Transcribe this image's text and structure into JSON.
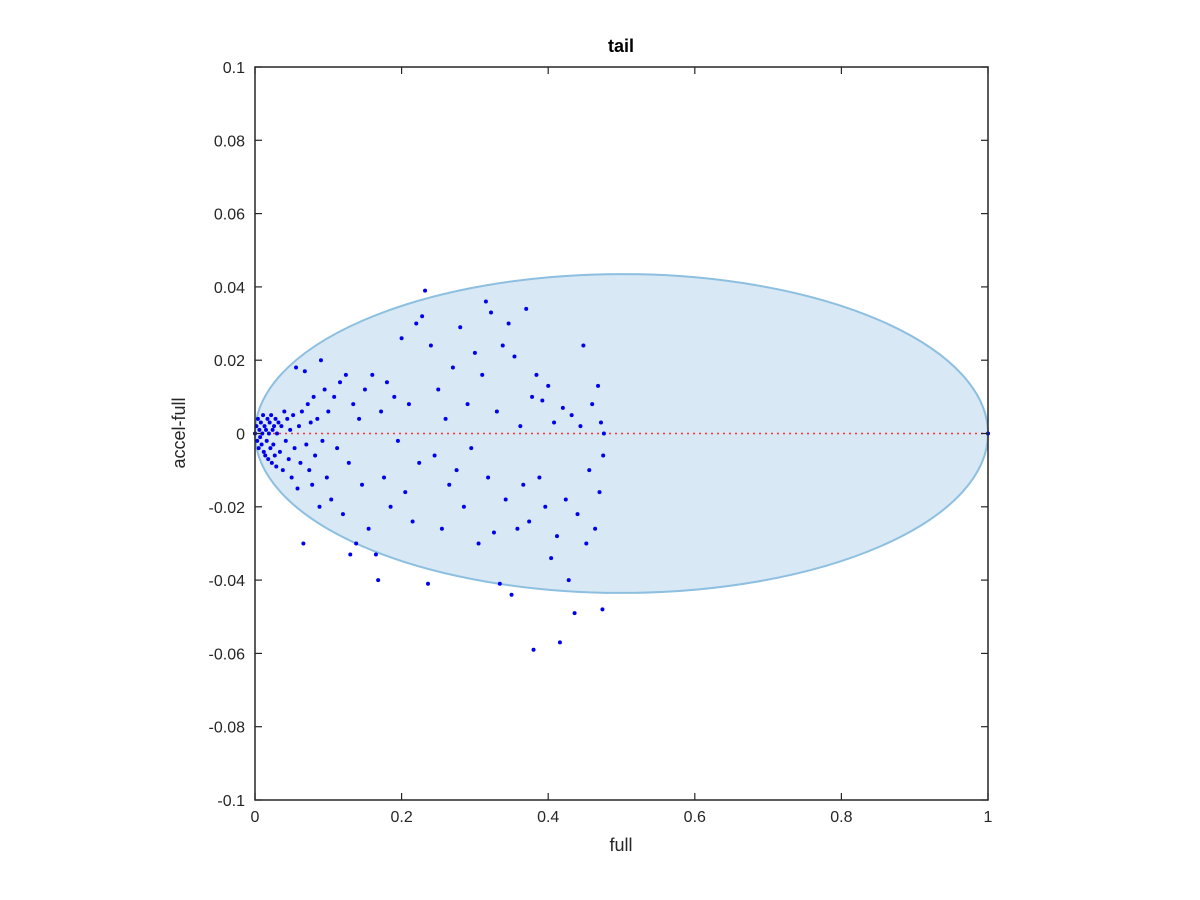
{
  "chart_data": {
    "type": "scatter",
    "title": "tail",
    "xlabel": "full",
    "ylabel": "accel-full",
    "xlim": [
      0,
      1
    ],
    "ylim": [
      -0.1,
      0.1
    ],
    "xticks": [
      "0",
      "0.2",
      "0.4",
      "0.6",
      "0.8",
      "1"
    ],
    "yticks": [
      "-0.1",
      "-0.08",
      "-0.06",
      "-0.04",
      "-0.02",
      "0",
      "0.02",
      "0.04",
      "0.06",
      "0.08",
      "0.1"
    ],
    "grid": false,
    "legend": "none",
    "colors": {
      "points": "#0000ee",
      "zero_line": "#ff3333",
      "ellipse_fill": "#d8e8f4",
      "ellipse_stroke": "#8dbfe0"
    },
    "ellipse": {
      "cx": 0.5,
      "cy": 0.0,
      "rx": 0.5,
      "ry": 0.0435
    },
    "reference_line": {
      "y": 0,
      "x0": 0,
      "x1": 1
    },
    "series": [
      {
        "values": [
          [
            0.0,
            0.0
          ],
          [
            0.002,
            0.002
          ],
          [
            0.003,
            -0.002
          ],
          [
            0.004,
            0.004
          ],
          [
            0.005,
            -0.004
          ],
          [
            0.006,
            0.001
          ],
          [
            0.007,
            -0.001
          ],
          [
            0.008,
            0.003
          ],
          [
            0.009,
            -0.003
          ],
          [
            0.01,
            0.0
          ],
          [
            0.011,
            0.005
          ],
          [
            0.012,
            -0.005
          ],
          [
            0.013,
            0.002
          ],
          [
            0.014,
            -0.006
          ],
          [
            0.015,
            0.001
          ],
          [
            0.016,
            -0.002
          ],
          [
            0.017,
            0.004
          ],
          [
            0.018,
            -0.007
          ],
          [
            0.019,
            0.0
          ],
          [
            0.02,
            0.003
          ],
          [
            0.021,
            -0.004
          ],
          [
            0.022,
            0.005
          ],
          [
            0.023,
            -0.008
          ],
          [
            0.024,
            0.001
          ],
          [
            0.025,
            -0.003
          ],
          [
            0.026,
            0.002
          ],
          [
            0.027,
            -0.006
          ],
          [
            0.028,
            0.004
          ],
          [
            0.029,
            -0.009
          ],
          [
            0.03,
            0.0
          ],
          [
            0.032,
            0.003
          ],
          [
            0.034,
            -0.005
          ],
          [
            0.036,
            0.002
          ],
          [
            0.038,
            -0.01
          ],
          [
            0.04,
            0.006
          ],
          [
            0.042,
            -0.002
          ],
          [
            0.044,
            0.004
          ],
          [
            0.046,
            -0.007
          ],
          [
            0.048,
            0.001
          ],
          [
            0.05,
            -0.012
          ],
          [
            0.052,
            0.005
          ],
          [
            0.054,
            -0.004
          ],
          [
            0.056,
            0.018
          ],
          [
            0.058,
            -0.015
          ],
          [
            0.06,
            0.002
          ],
          [
            0.062,
            -0.008
          ],
          [
            0.064,
            0.006
          ],
          [
            0.066,
            -0.03
          ],
          [
            0.068,
            0.017
          ],
          [
            0.07,
            -0.003
          ],
          [
            0.072,
            0.008
          ],
          [
            0.074,
            -0.01
          ],
          [
            0.076,
            0.003
          ],
          [
            0.078,
            -0.014
          ],
          [
            0.08,
            0.01
          ],
          [
            0.082,
            -0.006
          ],
          [
            0.085,
            0.004
          ],
          [
            0.088,
            -0.02
          ],
          [
            0.09,
            0.02
          ],
          [
            0.092,
            -0.002
          ],
          [
            0.095,
            0.012
          ],
          [
            0.098,
            -0.012
          ],
          [
            0.1,
            0.006
          ],
          [
            0.104,
            -0.018
          ],
          [
            0.108,
            0.01
          ],
          [
            0.112,
            -0.004
          ],
          [
            0.116,
            0.014
          ],
          [
            0.12,
            -0.022
          ],
          [
            0.124,
            0.016
          ],
          [
            0.128,
            -0.008
          ],
          [
            0.13,
            -0.033
          ],
          [
            0.134,
            0.008
          ],
          [
            0.138,
            -0.03
          ],
          [
            0.142,
            0.004
          ],
          [
            0.146,
            -0.014
          ],
          [
            0.15,
            0.012
          ],
          [
            0.155,
            -0.026
          ],
          [
            0.16,
            0.016
          ],
          [
            0.165,
            -0.033
          ],
          [
            0.168,
            -0.04
          ],
          [
            0.172,
            0.006
          ],
          [
            0.176,
            -0.012
          ],
          [
            0.18,
            0.014
          ],
          [
            0.185,
            -0.02
          ],
          [
            0.19,
            0.01
          ],
          [
            0.195,
            -0.002
          ],
          [
            0.2,
            0.026
          ],
          [
            0.205,
            -0.016
          ],
          [
            0.21,
            0.008
          ],
          [
            0.215,
            -0.024
          ],
          [
            0.22,
            0.03
          ],
          [
            0.224,
            -0.008
          ],
          [
            0.228,
            0.032
          ],
          [
            0.232,
            0.039
          ],
          [
            0.236,
            -0.041
          ],
          [
            0.24,
            0.024
          ],
          [
            0.245,
            -0.006
          ],
          [
            0.25,
            0.012
          ],
          [
            0.255,
            -0.026
          ],
          [
            0.26,
            0.004
          ],
          [
            0.265,
            -0.014
          ],
          [
            0.27,
            0.018
          ],
          [
            0.275,
            -0.01
          ],
          [
            0.28,
            0.029
          ],
          [
            0.285,
            -0.02
          ],
          [
            0.29,
            0.008
          ],
          [
            0.295,
            -0.004
          ],
          [
            0.3,
            0.022
          ],
          [
            0.305,
            -0.03
          ],
          [
            0.31,
            0.016
          ],
          [
            0.315,
            0.036
          ],
          [
            0.318,
            -0.012
          ],
          [
            0.322,
            0.033
          ],
          [
            0.326,
            -0.027
          ],
          [
            0.33,
            0.006
          ],
          [
            0.334,
            -0.041
          ],
          [
            0.338,
            0.024
          ],
          [
            0.342,
            -0.018
          ],
          [
            0.346,
            0.03
          ],
          [
            0.35,
            -0.044
          ],
          [
            0.354,
            0.021
          ],
          [
            0.358,
            -0.026
          ],
          [
            0.362,
            0.002
          ],
          [
            0.366,
            -0.014
          ],
          [
            0.37,
            0.034
          ],
          [
            0.374,
            -0.024
          ],
          [
            0.378,
            0.01
          ],
          [
            0.38,
            -0.059
          ],
          [
            0.384,
            0.016
          ],
          [
            0.388,
            -0.012
          ],
          [
            0.392,
            0.009
          ],
          [
            0.396,
            -0.02
          ],
          [
            0.4,
            0.013
          ],
          [
            0.404,
            -0.034
          ],
          [
            0.408,
            0.003
          ],
          [
            0.412,
            -0.028
          ],
          [
            0.416,
            -0.057
          ],
          [
            0.42,
            0.007
          ],
          [
            0.424,
            -0.018
          ],
          [
            0.428,
            -0.04
          ],
          [
            0.432,
            0.005
          ],
          [
            0.436,
            -0.049
          ],
          [
            0.44,
            -0.022
          ],
          [
            0.444,
            0.002
          ],
          [
            0.448,
            0.024
          ],
          [
            0.452,
            -0.03
          ],
          [
            0.456,
            -0.01
          ],
          [
            0.46,
            0.008
          ],
          [
            0.464,
            -0.026
          ],
          [
            0.468,
            0.013
          ],
          [
            0.47,
            -0.016
          ],
          [
            0.472,
            0.003
          ],
          [
            0.474,
            -0.048
          ],
          [
            0.475,
            -0.006
          ],
          [
            0.476,
            0.0
          ],
          [
            1.0,
            0.0
          ]
        ]
      }
    ]
  }
}
